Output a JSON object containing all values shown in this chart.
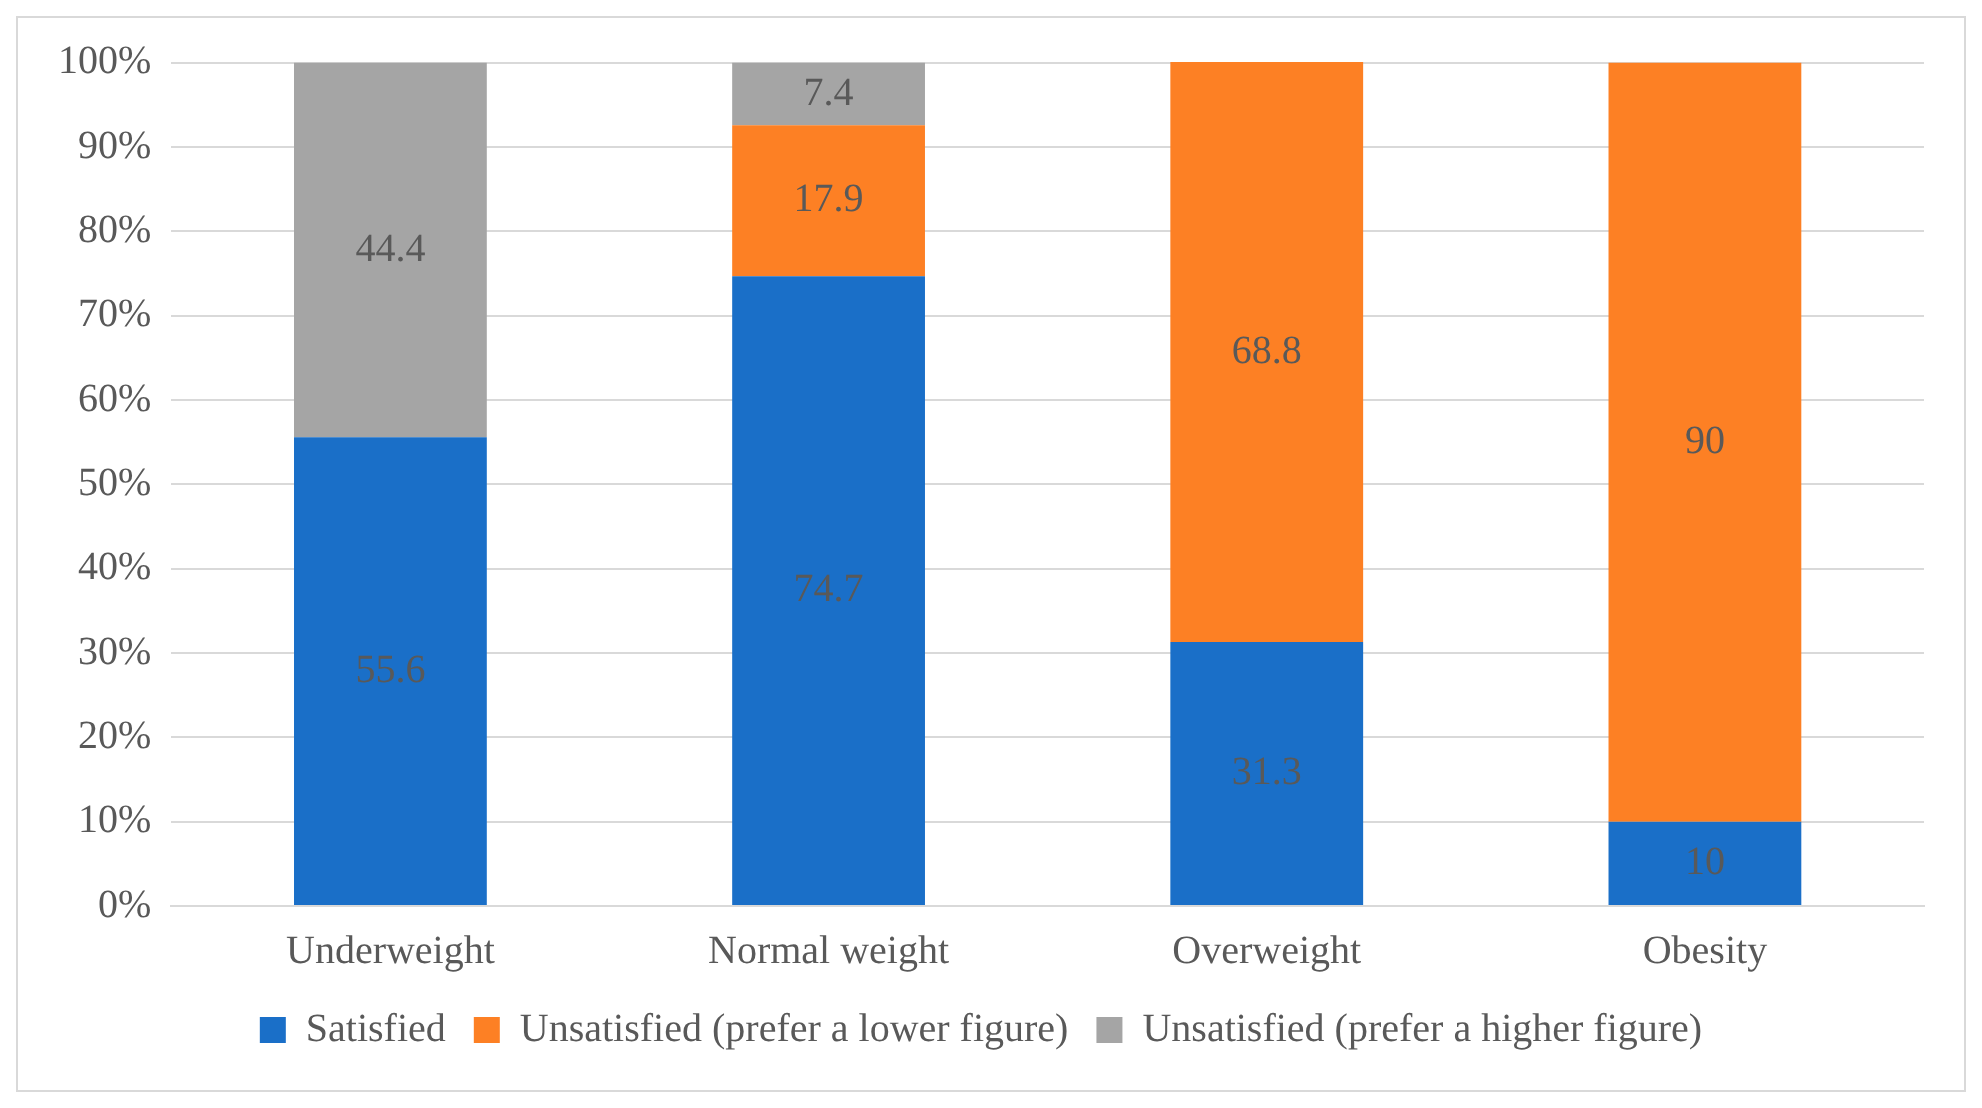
{
  "chart_data": {
    "type": "bar",
    "stacked": true,
    "categories": [
      "Underweight",
      "Normal weight",
      "Overweight",
      "Obesity"
    ],
    "series": [
      {
        "name": "Satisfied",
        "color": "#1a6fc8",
        "values": [
          55.6,
          74.7,
          31.3,
          10
        ],
        "value_labels": [
          "55.6",
          "74.7",
          "31.3",
          "10"
        ]
      },
      {
        "name": "Unsatisfied (prefer a lower figure)",
        "color": "#fd8024",
        "values": [
          null,
          17.9,
          68.8,
          90
        ],
        "value_labels": [
          null,
          "17.9",
          "68.8",
          "90"
        ]
      },
      {
        "name": "Unsatisfied (prefer a higher figure)",
        "color": "#a5a5a5",
        "values": [
          44.4,
          7.4,
          null,
          null
        ],
        "value_labels": [
          "44.4",
          "7.4",
          null,
          null
        ]
      }
    ],
    "ylim": [
      0,
      100.1
    ],
    "yticks": [
      {
        "value": 0,
        "label": "0%"
      },
      {
        "value": 10,
        "label": "10%"
      },
      {
        "value": 20,
        "label": "20%"
      },
      {
        "value": 30,
        "label": "30%"
      },
      {
        "value": 40,
        "label": "40%"
      },
      {
        "value": 50,
        "label": "50%"
      },
      {
        "value": 60,
        "label": "60%"
      },
      {
        "value": 70,
        "label": "70%"
      },
      {
        "value": 80,
        "label": "80%"
      },
      {
        "value": 90,
        "label": "90%"
      },
      {
        "value": 100,
        "label": "100%"
      }
    ],
    "grid": "y",
    "legend": "bottom"
  }
}
